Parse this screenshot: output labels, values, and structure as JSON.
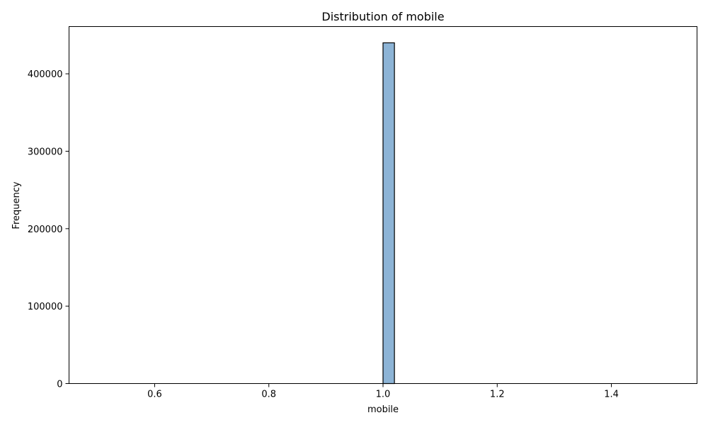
{
  "chart_data": {
    "type": "bar",
    "title": "Distribution of mobile",
    "xlabel": "mobile",
    "ylabel": "Frequency",
    "xlim": [
      0.45,
      1.55
    ],
    "ylim": [
      0,
      461000
    ],
    "bins": {
      "start": 0.5,
      "end": 1.5,
      "count": 50,
      "values": [
        0,
        0,
        0,
        0,
        0,
        0,
        0,
        0,
        0,
        0,
        0,
        0,
        0,
        0,
        0,
        0,
        0,
        0,
        0,
        0,
        0,
        0,
        0,
        0,
        0,
        440000,
        0,
        0,
        0,
        0,
        0,
        0,
        0,
        0,
        0,
        0,
        0,
        0,
        0,
        0,
        0,
        0,
        0,
        0,
        0,
        0,
        0,
        0,
        0,
        0
      ]
    },
    "x_ticks": [
      {
        "value": 0.6,
        "label": "0.6"
      },
      {
        "value": 0.8,
        "label": "0.8"
      },
      {
        "value": 1.0,
        "label": "1.0"
      },
      {
        "value": 1.2,
        "label": "1.2"
      },
      {
        "value": 1.4,
        "label": "1.4"
      }
    ],
    "y_ticks": [
      {
        "value": 0,
        "label": "0"
      },
      {
        "value": 100000,
        "label": "100000"
      },
      {
        "value": 200000,
        "label": "200000"
      },
      {
        "value": 300000,
        "label": "300000"
      },
      {
        "value": 400000,
        "label": "400000"
      }
    ],
    "bar_color": "#8db4d6",
    "edge_color": "#000000",
    "grid": false,
    "legend": "none"
  }
}
